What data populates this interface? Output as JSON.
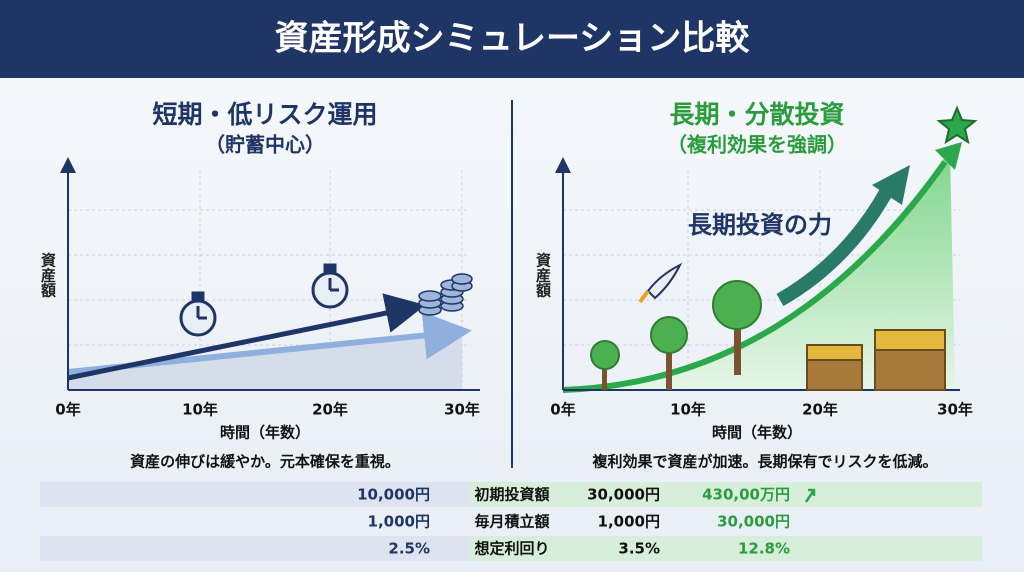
{
  "header": {
    "title": "資産形成シミュレーション比較"
  },
  "panels": [
    {
      "title": "短期・低リスク運用",
      "subtitle": "（貯蓄中心）",
      "y_label": "資産額",
      "x_ticks": [
        "0年",
        "10年",
        "20年",
        "30年"
      ],
      "x_label": "時間（年数）",
      "caption": "資産の伸びは緩やか。元本確保を重視。"
    },
    {
      "title": "長期・分散投資",
      "subtitle": "（複利効果を強調）",
      "annotation": "長期投資の力",
      "y_label": "資産額",
      "x_ticks": [
        "0年",
        "10年",
        "20年",
        "30年"
      ],
      "x_label": "時間（年数）",
      "caption": "複利効果で資産が加速。長期保有でリスクを低減。"
    }
  ],
  "table": {
    "rows": [
      [
        "10,000円",
        "初期投資額",
        "30,000円",
        "430,00万円"
      ],
      [
        "1,000円",
        "毎月積立額",
        "1,000円",
        "30,000円"
      ],
      [
        "2.5%",
        "想定利回り",
        "3.5%",
        "12.8%"
      ]
    ]
  }
}
